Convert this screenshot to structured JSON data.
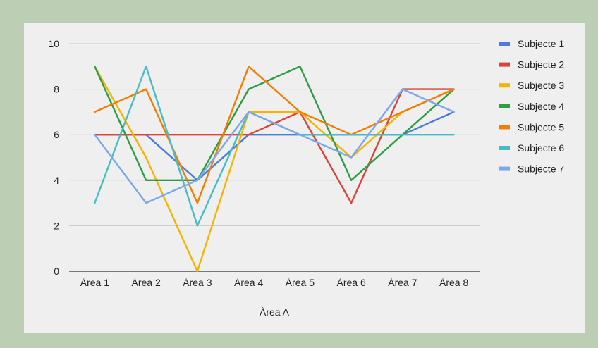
{
  "chart_data": {
    "type": "line",
    "categories": [
      "Àrea 1",
      "Àrea 2",
      "Àrea 3",
      "Àrea 4",
      "Àrea 5",
      "Àrea 6",
      "Àrea 7",
      "Àrea 8"
    ],
    "xlabel": "Àrea A",
    "ylabel": "",
    "ylim": [
      0,
      10
    ],
    "yticks": [
      0,
      2,
      4,
      6,
      8,
      10
    ],
    "grid": true,
    "legend_position": "right",
    "series": [
      {
        "name": "Subjecte 1",
        "color": "#4a7ddb",
        "values": [
          6,
          6,
          4,
          6,
          6,
          6,
          6,
          7
        ]
      },
      {
        "name": "Subjecte 2",
        "color": "#db4437",
        "values": [
          6,
          6,
          6,
          6,
          7,
          3,
          8,
          8
        ]
      },
      {
        "name": "Subjecte 3",
        "color": "#f4b400",
        "values": [
          9,
          5,
          0,
          7,
          7,
          5,
          7,
          8
        ]
      },
      {
        "name": "Subjecte 4",
        "color": "#2e9e44",
        "values": [
          9,
          4,
          4,
          8,
          9,
          4,
          6,
          8
        ]
      },
      {
        "name": "Subjecte 5",
        "color": "#f57c00",
        "values": [
          7,
          8,
          3,
          9,
          7,
          6,
          7,
          8
        ]
      },
      {
        "name": "Subjecte 6",
        "color": "#46bdc6",
        "values": [
          3,
          9,
          2,
          7,
          6,
          6,
          6,
          6
        ]
      },
      {
        "name": "Subjecte 7",
        "color": "#7ba7ec",
        "values": [
          6,
          3,
          4,
          7,
          6,
          5,
          8,
          7
        ]
      }
    ]
  }
}
